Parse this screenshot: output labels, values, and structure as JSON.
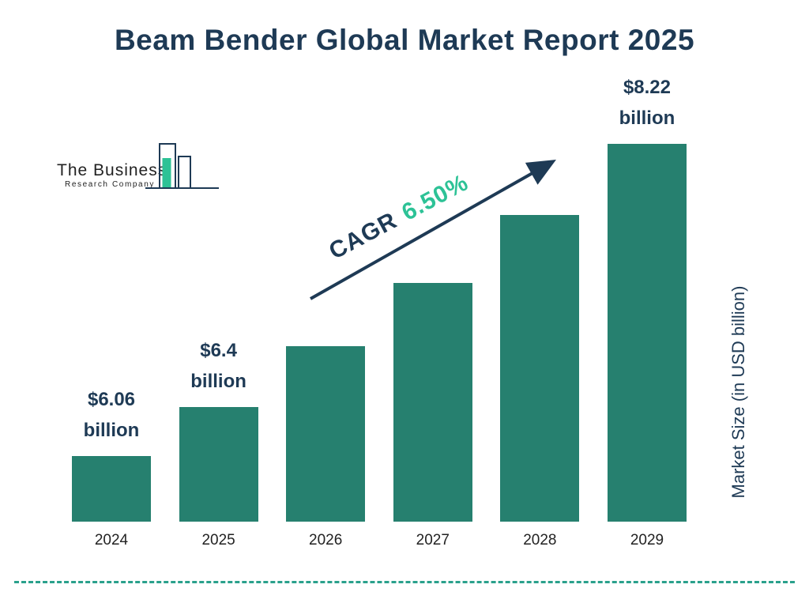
{
  "title": "Beam Bender Global Market Report 2025",
  "logo": {
    "line1": "The Business",
    "line2": "Research Company"
  },
  "cagr": {
    "label": "CAGR",
    "value": "6.50%"
  },
  "y_axis_label": "Market Size (in USD billion)",
  "colors": {
    "bar": "#26806f",
    "navy": "#1e3a55",
    "green_accent": "#2dc296",
    "dashed_line": "#2aa18c"
  },
  "chart_data": {
    "type": "bar",
    "title": "Beam Bender Global Market Report 2025",
    "ylabel": "Market Size (in USD billion)",
    "cagr": "6.50%",
    "categories": [
      "2024",
      "2025",
      "2026",
      "2027",
      "2028",
      "2029"
    ],
    "values": [
      6.06,
      6.4,
      6.82,
      7.26,
      7.73,
      8.22
    ],
    "value_unit": "USD billion",
    "labeled_values": {
      "2024": "$6.06 billion",
      "2025": "$6.4 billion",
      "2029": "$8.22 billion"
    },
    "legend": "none",
    "grid": "off",
    "bars": [
      {
        "year": "2024",
        "value": 6.06,
        "label_line1": "$6.06",
        "label_line2": "billion"
      },
      {
        "year": "2025",
        "value": 6.4,
        "label_line1": "$6.4",
        "label_line2": "billion"
      },
      {
        "year": "2026",
        "value": 6.82
      },
      {
        "year": "2027",
        "value": 7.26
      },
      {
        "year": "2028",
        "value": 7.73
      },
      {
        "year": "2029",
        "value": 8.22,
        "label_line1": "$8.22",
        "label_line2": "billion"
      }
    ]
  }
}
